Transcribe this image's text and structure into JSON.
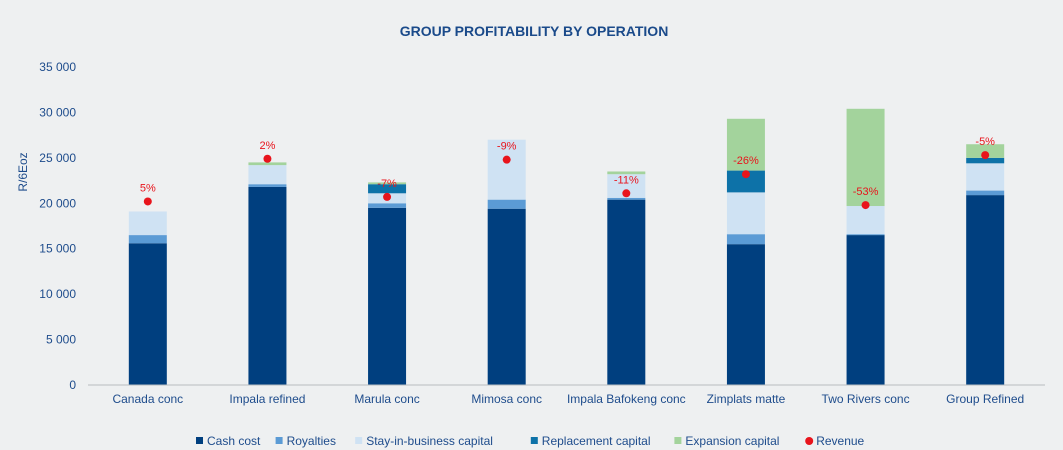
{
  "chart_data": {
    "type": "bar",
    "stacked": true,
    "title": "GROUP PROFITABILITY BY OPERATION",
    "ylabel": "R/6Eoz",
    "xlabel": "",
    "ylim": [
      0,
      35000
    ],
    "yticks": [
      0,
      5000,
      10000,
      15000,
      20000,
      25000,
      30000,
      35000
    ],
    "ytick_labels": [
      "0",
      "5 000",
      "10 000",
      "15 000",
      "20 000",
      "25 000",
      "30 000",
      "35 000"
    ],
    "categories": [
      "Canada conc",
      "Impala refined",
      "Marula conc",
      "Mimosa conc",
      "Impala Bafokeng conc",
      "Zimplats matte",
      "Two Rivers conc",
      "Group Refined"
    ],
    "series": [
      {
        "name": "Cash cost",
        "color": "#003f7f",
        "values": [
          15600,
          21800,
          19500,
          19400,
          20400,
          15500,
          16500,
          20900
        ]
      },
      {
        "name": "Royalties",
        "color": "#5b9bd5",
        "values": [
          900,
          300,
          500,
          1000,
          200,
          1100,
          100,
          500
        ]
      },
      {
        "name": "Stay-in-business capital",
        "color": "#cfe2f3",
        "values": [
          2600,
          2100,
          1100,
          6600,
          2600,
          4600,
          3100,
          3000
        ]
      },
      {
        "name": "Replacement capital",
        "color": "#0d72a8",
        "values": [
          0,
          0,
          1000,
          0,
          0,
          2400,
          0,
          600
        ]
      },
      {
        "name": "Expansion capital",
        "color": "#a3d39c",
        "values": [
          0,
          300,
          200,
          0,
          300,
          5700,
          10700,
          1500
        ]
      }
    ],
    "revenue": {
      "name": "Revenue",
      "color": "#e8141c",
      "values": [
        20200,
        24900,
        20700,
        24800,
        21100,
        23200,
        19800,
        25300
      ],
      "labels": [
        "5%",
        "2%",
        "-7%",
        "-9%",
        "-11%",
        "-26%",
        "-53%",
        "-5%"
      ]
    },
    "legend_position": "bottom"
  }
}
